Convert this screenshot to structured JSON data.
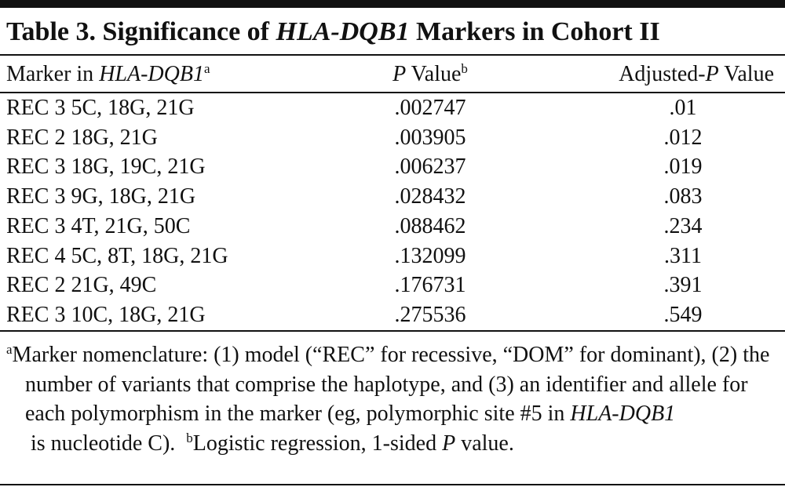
{
  "header": {
    "title": [
      "Table 3. Significance of ",
      "HLA-DQB1",
      " Markers in Cohort II"
    ]
  },
  "table": {
    "columns": [
      [
        "Marker in ",
        "HLA-DQB1",
        "a"
      ],
      [
        "P",
        " Value",
        "b"
      ],
      [
        "Adjusted-",
        "P",
        " Value"
      ]
    ],
    "rows": [
      [
        "REC 3 5C, 18G, 21G",
        ".002747",
        ".01"
      ],
      [
        "REC 2 18G, 21G",
        ".003905",
        ".012"
      ],
      [
        "REC 3 18G, 19C, 21G",
        ".006237",
        ".019"
      ],
      [
        "REC 3 9G, 18G, 21G",
        ".028432",
        ".083"
      ],
      [
        "REC 3 4T, 21G, 50C",
        ".088462",
        ".234"
      ],
      [
        "REC 4 5C, 8T, 18G, 21G",
        ".132099",
        ".311"
      ],
      [
        "REC 2 21G, 49C",
        ".176731",
        ".391"
      ],
      [
        "REC 3 10C, 18G, 21G",
        ".275536",
        ".549"
      ]
    ]
  },
  "footnote": [
    "a",
    "Marker nomenclature: (1) model (“REC” for recessive, “DOM” for dominant), (2) the number of variants that comprise the haplotype, and (3) an identifier and allele for each polymorphism in the marker (eg, polymorphic site #5 in ",
    "HLA-DQB1",
    " is nucleotide C).  ",
    "b",
    "Logistic regression, 1-sided ",
    "P",
    " value."
  ]
}
